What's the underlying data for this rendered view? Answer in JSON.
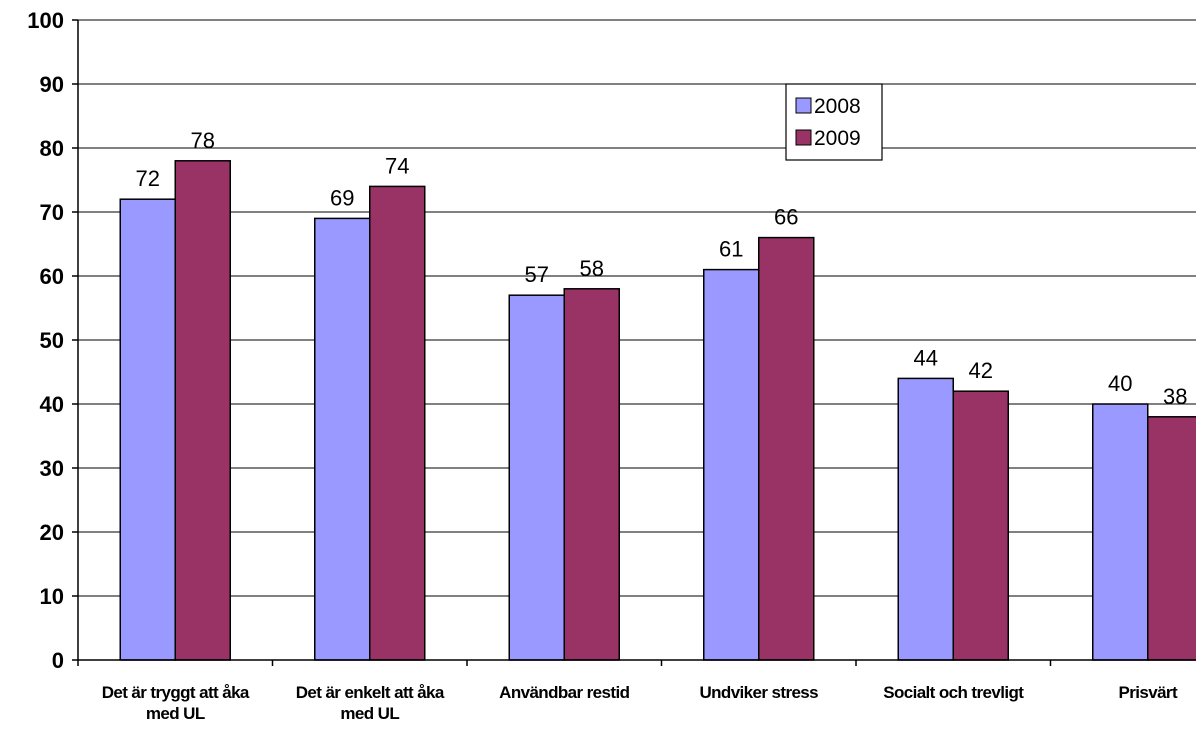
{
  "chart_data": {
    "type": "bar",
    "categories": [
      [
        "Det är tryggt att åka",
        "med UL"
      ],
      [
        "Det är enkelt att åka",
        "med UL"
      ],
      [
        "Användbar restid"
      ],
      [
        "Undviker stress"
      ],
      [
        "Socialt och trevligt"
      ],
      [
        "Prisvärt"
      ]
    ],
    "series": [
      {
        "name": "2008",
        "values": [
          72,
          69,
          57,
          61,
          44,
          40
        ]
      },
      {
        "name": "2009",
        "values": [
          78,
          74,
          58,
          66,
          42,
          38
        ]
      }
    ],
    "colors": {
      "2008": "#9999ff",
      "2009": "#993366"
    },
    "ylim": [
      0,
      100
    ],
    "yticks": [
      0,
      10,
      20,
      30,
      40,
      50,
      60,
      70,
      80,
      90,
      100
    ],
    "grid": true,
    "legend": "top-center",
    "title": "",
    "xlabel": "",
    "ylabel": ""
  }
}
